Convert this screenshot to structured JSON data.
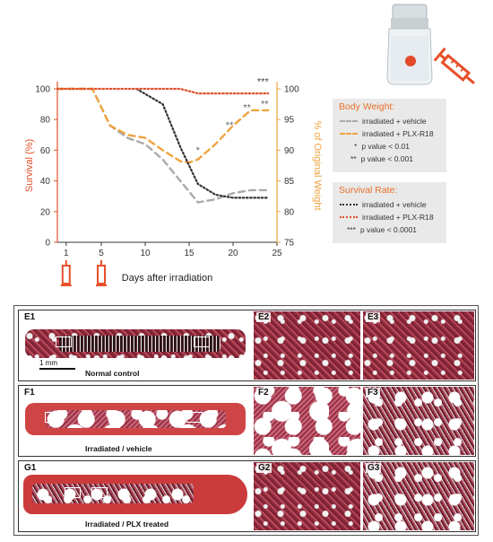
{
  "chart_data": {
    "type": "line",
    "xlabel": "Days after irradiation",
    "ylabel_left": "Survival (%)",
    "ylabel_right": "% of Original Weight",
    "xlim": [
      0,
      25
    ],
    "ylim_left": [
      0,
      100
    ],
    "ylim_right": [
      75,
      100
    ],
    "x_ticks": [
      1,
      5,
      10,
      15,
      20,
      25
    ],
    "y_ticks_left": [
      0,
      20,
      40,
      60,
      80,
      100
    ],
    "y_ticks_right": [
      75,
      80,
      85,
      90,
      95,
      100
    ],
    "dose_days": [
      1,
      5
    ],
    "series": [
      {
        "name": "irradiated + vehicle",
        "axis": "right",
        "color": "#aaaaaa",
        "dash": "7,5",
        "width": 2.4,
        "x": [
          0,
          4,
          6,
          8,
          10,
          12,
          14,
          16,
          18,
          20,
          22,
          24
        ],
        "y": [
          100,
          100,
          94,
          92,
          91,
          88.5,
          85,
          81.5,
          82,
          83,
          83.5,
          83.5
        ]
      },
      {
        "name": "irradiated + PLX-R18",
        "axis": "right",
        "color": "#f0a340",
        "dash": "7,5",
        "width": 2.4,
        "x": [
          0,
          4,
          6,
          8,
          10,
          12,
          14,
          15,
          16,
          18,
          20,
          22,
          24
        ],
        "y": [
          100,
          100,
          94,
          92.5,
          92,
          90,
          88.2,
          88,
          88.5,
          91,
          94,
          96.5,
          96.5
        ]
      },
      {
        "name": "irradiated + vehicle",
        "axis": "left",
        "color": "#333333",
        "dash": "1.6,2.6",
        "width": 2.2,
        "x": [
          9,
          12,
          14,
          16,
          18,
          20,
          22,
          24
        ],
        "y": [
          100,
          90,
          62,
          38,
          31,
          29,
          29,
          29
        ]
      },
      {
        "name": "irradiated + PLX-R18",
        "axis": "left",
        "color": "#e0502a",
        "dash": "1.6,2.6",
        "width": 2.2,
        "x": [
          0,
          14,
          16,
          18,
          20,
          22,
          24
        ],
        "y": [
          100,
          100,
          97,
          97,
          97,
          97,
          97
        ]
      }
    ],
    "annotations": [
      {
        "text": "*",
        "x": 16,
        "axis": "right",
        "y": 89.5,
        "color": "#666666"
      },
      {
        "text": "**",
        "x": 19.6,
        "axis": "right",
        "y": 93.6,
        "color": "#666666"
      },
      {
        "text": "**",
        "x": 21.6,
        "axis": "right",
        "y": 96.4,
        "color": "#666666"
      },
      {
        "text": "**",
        "x": 23.6,
        "axis": "right",
        "y": 97,
        "color": "#666666"
      },
      {
        "text": "***",
        "x": 23.4,
        "axis": "left",
        "y": 102.5,
        "color": "#444444"
      }
    ]
  },
  "legend": {
    "body_weight": {
      "title": "Body Weight:",
      "items": [
        {
          "label": "irradiated + vehicle",
          "color": "#aaaaaa",
          "style": "dashed"
        },
        {
          "label": "irradiated + PLX-R18",
          "color": "#f0a340",
          "style": "dashed"
        }
      ],
      "notes": [
        {
          "mark": "*",
          "text": "p value < 0.01"
        },
        {
          "mark": "**",
          "text": "p value < 0.001"
        }
      ]
    },
    "survival_rate": {
      "title": "Survival Rate:",
      "items": [
        {
          "label": "irradiated + vehicle",
          "color": "#333333",
          "style": "dotted"
        },
        {
          "label": "irradiated + PLX-R18",
          "color": "#e0502a",
          "style": "dotted"
        }
      ],
      "notes": [
        {
          "mark": "***",
          "text": "p value < 0.0001"
        }
      ]
    }
  },
  "panels": {
    "rows": [
      {
        "labels": [
          "E1",
          "E2",
          "E3"
        ],
        "caption": "Normal control",
        "scale": "1 mm"
      },
      {
        "labels": [
          "F1",
          "F2",
          "F3"
        ],
        "caption": "Irradiated / vehicle"
      },
      {
        "labels": [
          "G1",
          "G2",
          "G3"
        ],
        "caption": "Irradiated / PLX treated"
      }
    ]
  },
  "colors": {
    "accent": "#e8702a",
    "axis_left": "#e0502a",
    "axis_right": "#f0a340"
  }
}
